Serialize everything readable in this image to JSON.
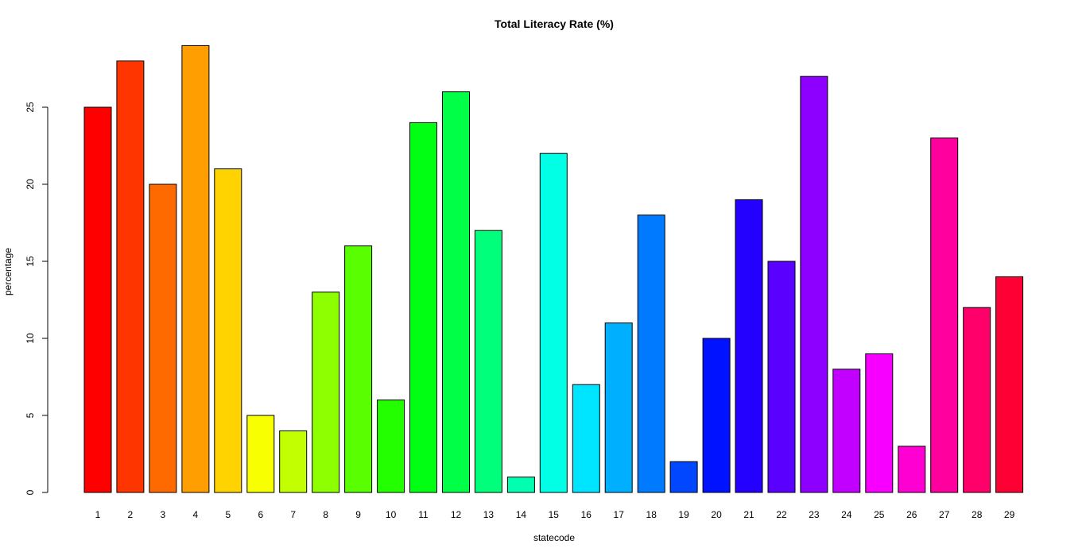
{
  "chart_data": {
    "type": "bar",
    "title": "Total Literacy Rate (%)",
    "xlabel": "statecode",
    "ylabel": "percentage",
    "categories": [
      "1",
      "2",
      "3",
      "4",
      "5",
      "6",
      "7",
      "8",
      "9",
      "10",
      "11",
      "12",
      "13",
      "14",
      "15",
      "16",
      "17",
      "18",
      "19",
      "20",
      "21",
      "22",
      "23",
      "24",
      "25",
      "26",
      "27",
      "28",
      "29"
    ],
    "values": [
      25,
      28,
      20,
      29,
      21,
      5,
      4,
      13,
      16,
      6,
      24,
      26,
      17,
      1,
      22,
      7,
      11,
      18,
      2,
      10,
      19,
      15,
      27,
      8,
      9,
      3,
      23,
      12,
      14
    ],
    "colors": [
      "#FF0000",
      "#FF3500",
      "#FF6A00",
      "#FF9E00",
      "#FFD300",
      "#F7FF00",
      "#C2FF00",
      "#8DFF00",
      "#59FF00",
      "#24FF00",
      "#00FF12",
      "#00FF47",
      "#00FF7B",
      "#00FFB0",
      "#00FFE5",
      "#00E5FF",
      "#00B0FF",
      "#007BFF",
      "#0047FF",
      "#0012FF",
      "#2400FF",
      "#5900FF",
      "#8D00FF",
      "#C200FF",
      "#F700FF",
      "#FF00D3",
      "#FF009E",
      "#FF006A",
      "#FF0035"
    ],
    "yticks": [
      0,
      5,
      10,
      15,
      20,
      25
    ],
    "ylim": [
      0,
      29
    ],
    "grid": false,
    "legend": "none"
  }
}
